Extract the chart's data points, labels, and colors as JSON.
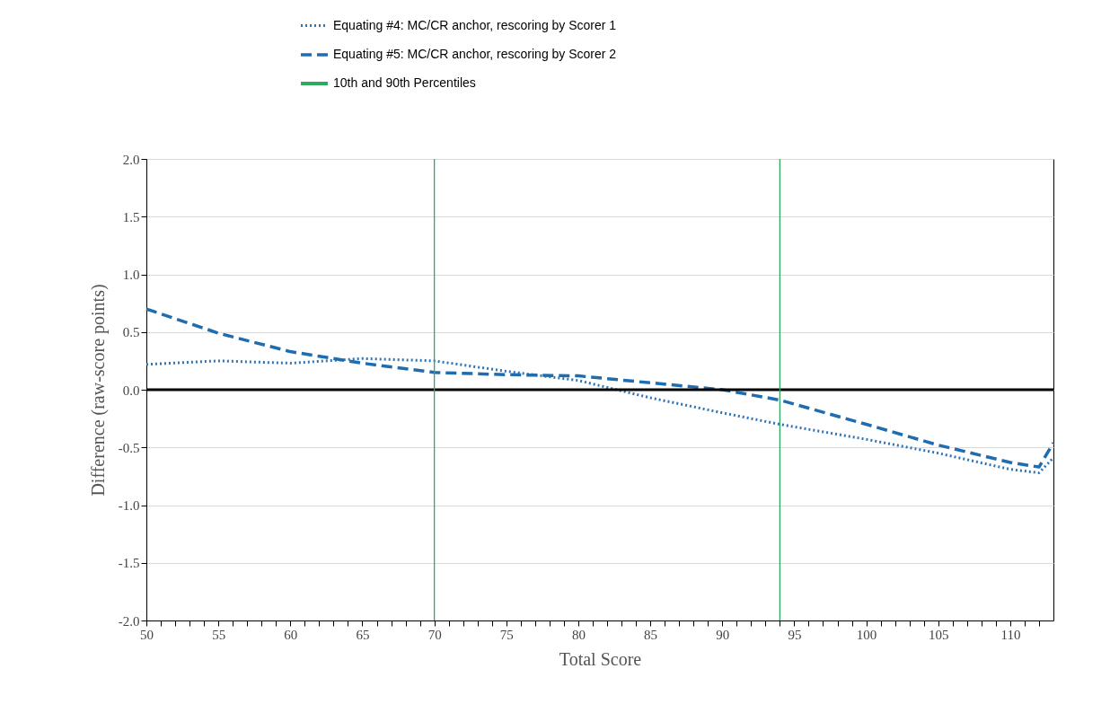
{
  "chart_data": {
    "type": "line",
    "xlabel": "Total Score",
    "ylabel": "Difference (raw-score points)",
    "xlim": [
      50,
      113
    ],
    "ylim": [
      -2,
      2
    ],
    "xticks": [
      50,
      {
        "value": 51,
        "label": null
      },
      {
        "value": 52,
        "label": null
      },
      {
        "value": 53,
        "label": null
      },
      {
        "value": 54,
        "label": null
      },
      55,
      {
        "value": 56,
        "label": null
      },
      {
        "value": 57,
        "label": null
      },
      {
        "value": 58,
        "label": null
      },
      {
        "value": 59,
        "label": null
      },
      60,
      {
        "value": 61,
        "label": null
      },
      {
        "value": 62,
        "label": null
      },
      {
        "value": 63,
        "label": null
      },
      {
        "value": 64,
        "label": null
      },
      65,
      {
        "value": 66,
        "label": null
      },
      {
        "value": 67,
        "label": null
      },
      {
        "value": 68,
        "label": null
      },
      {
        "value": 69,
        "label": null
      },
      70,
      {
        "value": 71,
        "label": null
      },
      {
        "value": 72,
        "label": null
      },
      {
        "value": 73,
        "label": null
      },
      {
        "value": 74,
        "label": null
      },
      75,
      {
        "value": 76,
        "label": null
      },
      {
        "value": 77,
        "label": null
      },
      {
        "value": 78,
        "label": null
      },
      {
        "value": 79,
        "label": null
      },
      80,
      {
        "value": 81,
        "label": null
      },
      {
        "value": 82,
        "label": null
      },
      {
        "value": 83,
        "label": null
      },
      {
        "value": 84,
        "label": null
      },
      85,
      {
        "value": 86,
        "label": null
      },
      {
        "value": 87,
        "label": null
      },
      {
        "value": 88,
        "label": null
      },
      {
        "value": 89,
        "label": null
      },
      90,
      {
        "value": 91,
        "label": null
      },
      {
        "value": 92,
        "label": null
      },
      {
        "value": 93,
        "label": null
      },
      {
        "value": 94,
        "label": null
      },
      95,
      {
        "value": 96,
        "label": null
      },
      {
        "value": 97,
        "label": null
      },
      {
        "value": 98,
        "label": null
      },
      {
        "value": 99,
        "label": null
      },
      100,
      {
        "value": 101,
        "label": null
      },
      {
        "value": 102,
        "label": null
      },
      {
        "value": 103,
        "label": null
      },
      {
        "value": 104,
        "label": null
      },
      105,
      {
        "value": 106,
        "label": null
      },
      {
        "value": 107,
        "label": null
      },
      {
        "value": 108,
        "label": null
      },
      {
        "value": 109,
        "label": null
      },
      110,
      {
        "value": 111,
        "label": null
      },
      {
        "value": 112,
        "label": null
      }
    ],
    "yticks": [
      {
        "value": -2,
        "label": "-2.0"
      },
      {
        "value": -1.5,
        "label": "-1.5"
      },
      {
        "value": -1,
        "label": "-1.0"
      },
      {
        "value": -0.5,
        "label": "-0.5"
      },
      {
        "value": 0,
        "label": "0.0"
      },
      {
        "value": 0.5,
        "label": "0.5"
      },
      {
        "value": 1,
        "label": "1.0"
      },
      {
        "value": 1.5,
        "label": "1.5"
      },
      {
        "value": 2,
        "label": "2.0"
      }
    ],
    "grid": "y",
    "legend": "top",
    "marker": "none",
    "series": [
      {
        "name": "Equating #4: MC/CR anchor, rescoring by Scorer 1",
        "color": "#2e75b6",
        "line_style": "dotted",
        "x": [
          50,
          55,
          60,
          65,
          70,
          75,
          80,
          85,
          90,
          94,
          100,
          105,
          110,
          112,
          113
        ],
        "values": [
          0.22,
          0.25,
          0.23,
          0.27,
          0.25,
          0.16,
          0.08,
          -0.07,
          -0.2,
          -0.3,
          -0.43,
          -0.55,
          -0.69,
          -0.72,
          -0.59
        ]
      },
      {
        "name": "Equating #5: MC/CR anchor, rescoring by Scorer 2",
        "color": "#1f6cae",
        "line_style": "dashed",
        "x": [
          50,
          55,
          60,
          65,
          70,
          75,
          80,
          85,
          90,
          94,
          100,
          105,
          110,
          112,
          113
        ],
        "values": [
          0.7,
          0.49,
          0.33,
          0.23,
          0.15,
          0.13,
          0.12,
          0.06,
          0,
          -0.09,
          -0.3,
          -0.48,
          -0.63,
          -0.67,
          -0.46
        ]
      }
    ],
    "ref_lines": [
      {
        "axis": "y",
        "value": 0,
        "color": "#000000",
        "line_style": "solid"
      },
      {
        "axis": "x",
        "value": 70,
        "label": "10th and 90th Percentiles",
        "color": "#2eaa5e",
        "line_style": "solid"
      },
      {
        "axis": "x",
        "value": 94,
        "color": "#2eaa5e",
        "line_style": "solid"
      }
    ]
  }
}
